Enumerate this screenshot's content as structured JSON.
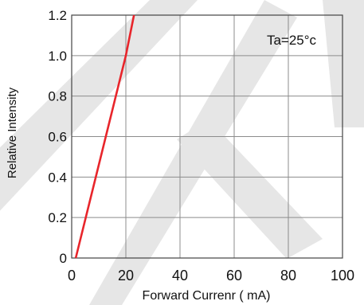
{
  "chart_data": {
    "type": "line",
    "title": "",
    "xlabel": "Forward Currenr ( mA)",
    "ylabel": "Relative Intensity",
    "annotation": "Ta=25°c",
    "xlim": [
      0,
      100
    ],
    "ylim": [
      0,
      1.2
    ],
    "x_ticks": [
      "0",
      "20",
      "40",
      "60",
      "80",
      "100"
    ],
    "y_ticks": [
      "0",
      "0.2",
      "0.4",
      "0.6",
      "0.8",
      "1.0",
      "1.2"
    ],
    "grid": true,
    "series": [
      {
        "color": "#e8252b",
        "x": [
          1.5,
          20,
          23
        ],
        "y": [
          0,
          1.0,
          1.2
        ]
      }
    ]
  },
  "colors": {
    "watermark": "#e6e6e6",
    "grid": "#8c8c8c",
    "frame": "#444444"
  }
}
